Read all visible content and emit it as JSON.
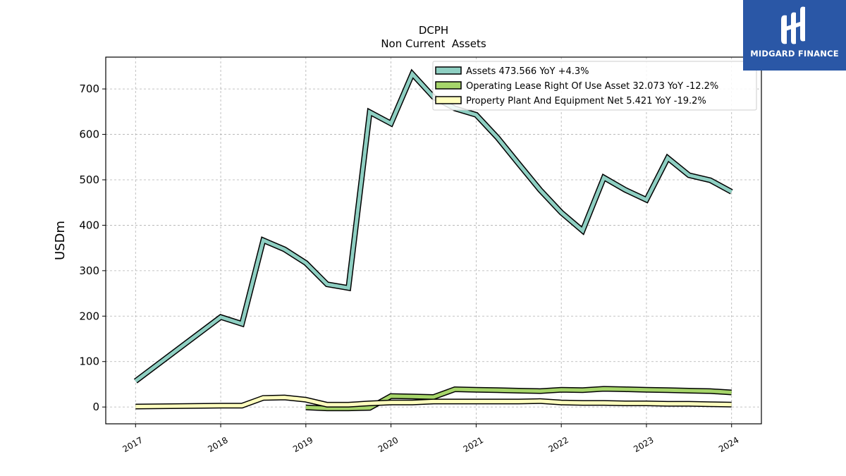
{
  "brand": {
    "name": "MIDGARD FINANCE",
    "color": "#2a57a6"
  },
  "chart_data": {
    "type": "line",
    "title": "DCPH",
    "subtitle": "Non Current  Assets",
    "ylabel": "USDm",
    "xlabel": "",
    "ylim": [
      -37,
      770
    ],
    "yticks": [
      0,
      100,
      200,
      300,
      400,
      500,
      600,
      700
    ],
    "xlim": [
      2016.65,
      2024.35
    ],
    "xticks": [
      "2017",
      "2018",
      "2019",
      "2020",
      "2021",
      "2022",
      "2023",
      "2024"
    ],
    "grid": true,
    "legend_position": "top-right",
    "series": [
      {
        "name": "Assets  473.566 YoY +4.3%",
        "color": "#8ecfc2",
        "x": [
          2017.0,
          2018.0,
          2018.25,
          2018.5,
          2018.75,
          2019.0,
          2019.25,
          2019.5,
          2019.75,
          2020.0,
          2020.25,
          2020.5,
          2020.75,
          2021.0,
          2021.25,
          2021.5,
          2021.75,
          2022.0,
          2022.25,
          2022.5,
          2022.75,
          2023.0,
          2023.25,
          2023.5,
          2023.75,
          2024.0
        ],
        "y": [
          57,
          198,
          183,
          367,
          347,
          317,
          270,
          262,
          649,
          624,
          733,
          682,
          657,
          643,
          593,
          535,
          478,
          428,
          388,
          505,
          478,
          456,
          548,
          510,
          499,
          473.566
        ]
      },
      {
        "name": "Operating Lease Right Of Use Asset  32.073 YoY -12.2%",
        "color": "#a6d56a",
        "x": [
          2019.0,
          2019.25,
          2019.5,
          2019.75,
          2020.0,
          2020.25,
          2020.5,
          2020.75,
          2021.0,
          2021.25,
          2021.5,
          2021.75,
          2022.0,
          2022.25,
          2022.5,
          2022.75,
          2023.0,
          2023.25,
          2023.5,
          2023.75,
          2024.0
        ],
        "y": [
          -1,
          -3,
          -3,
          -2,
          24,
          23,
          22,
          39,
          38,
          37,
          36,
          35,
          38,
          37,
          40,
          39,
          38,
          37,
          36,
          35,
          32.073
        ]
      },
      {
        "name": "Property Plant And Equipment Net  5.421 YoY -19.2%",
        "color": "#ffffbe",
        "x": [
          2017.0,
          2018.0,
          2018.25,
          2018.5,
          2018.75,
          2019.0,
          2019.25,
          2019.5,
          2019.75,
          2020.0,
          2020.25,
          2020.5,
          2020.75,
          2021.0,
          2021.25,
          2021.5,
          2021.75,
          2022.0,
          2022.25,
          2022.5,
          2022.75,
          2023.0,
          2023.25,
          2023.5,
          2023.75,
          2024.0
        ],
        "y": [
          1,
          3,
          3,
          20,
          21,
          16,
          5,
          5,
          8,
          10,
          10,
          12,
          12,
          12,
          12,
          12,
          13,
          10,
          9,
          9,
          8,
          8,
          7,
          7,
          6,
          5.421
        ]
      }
    ]
  }
}
